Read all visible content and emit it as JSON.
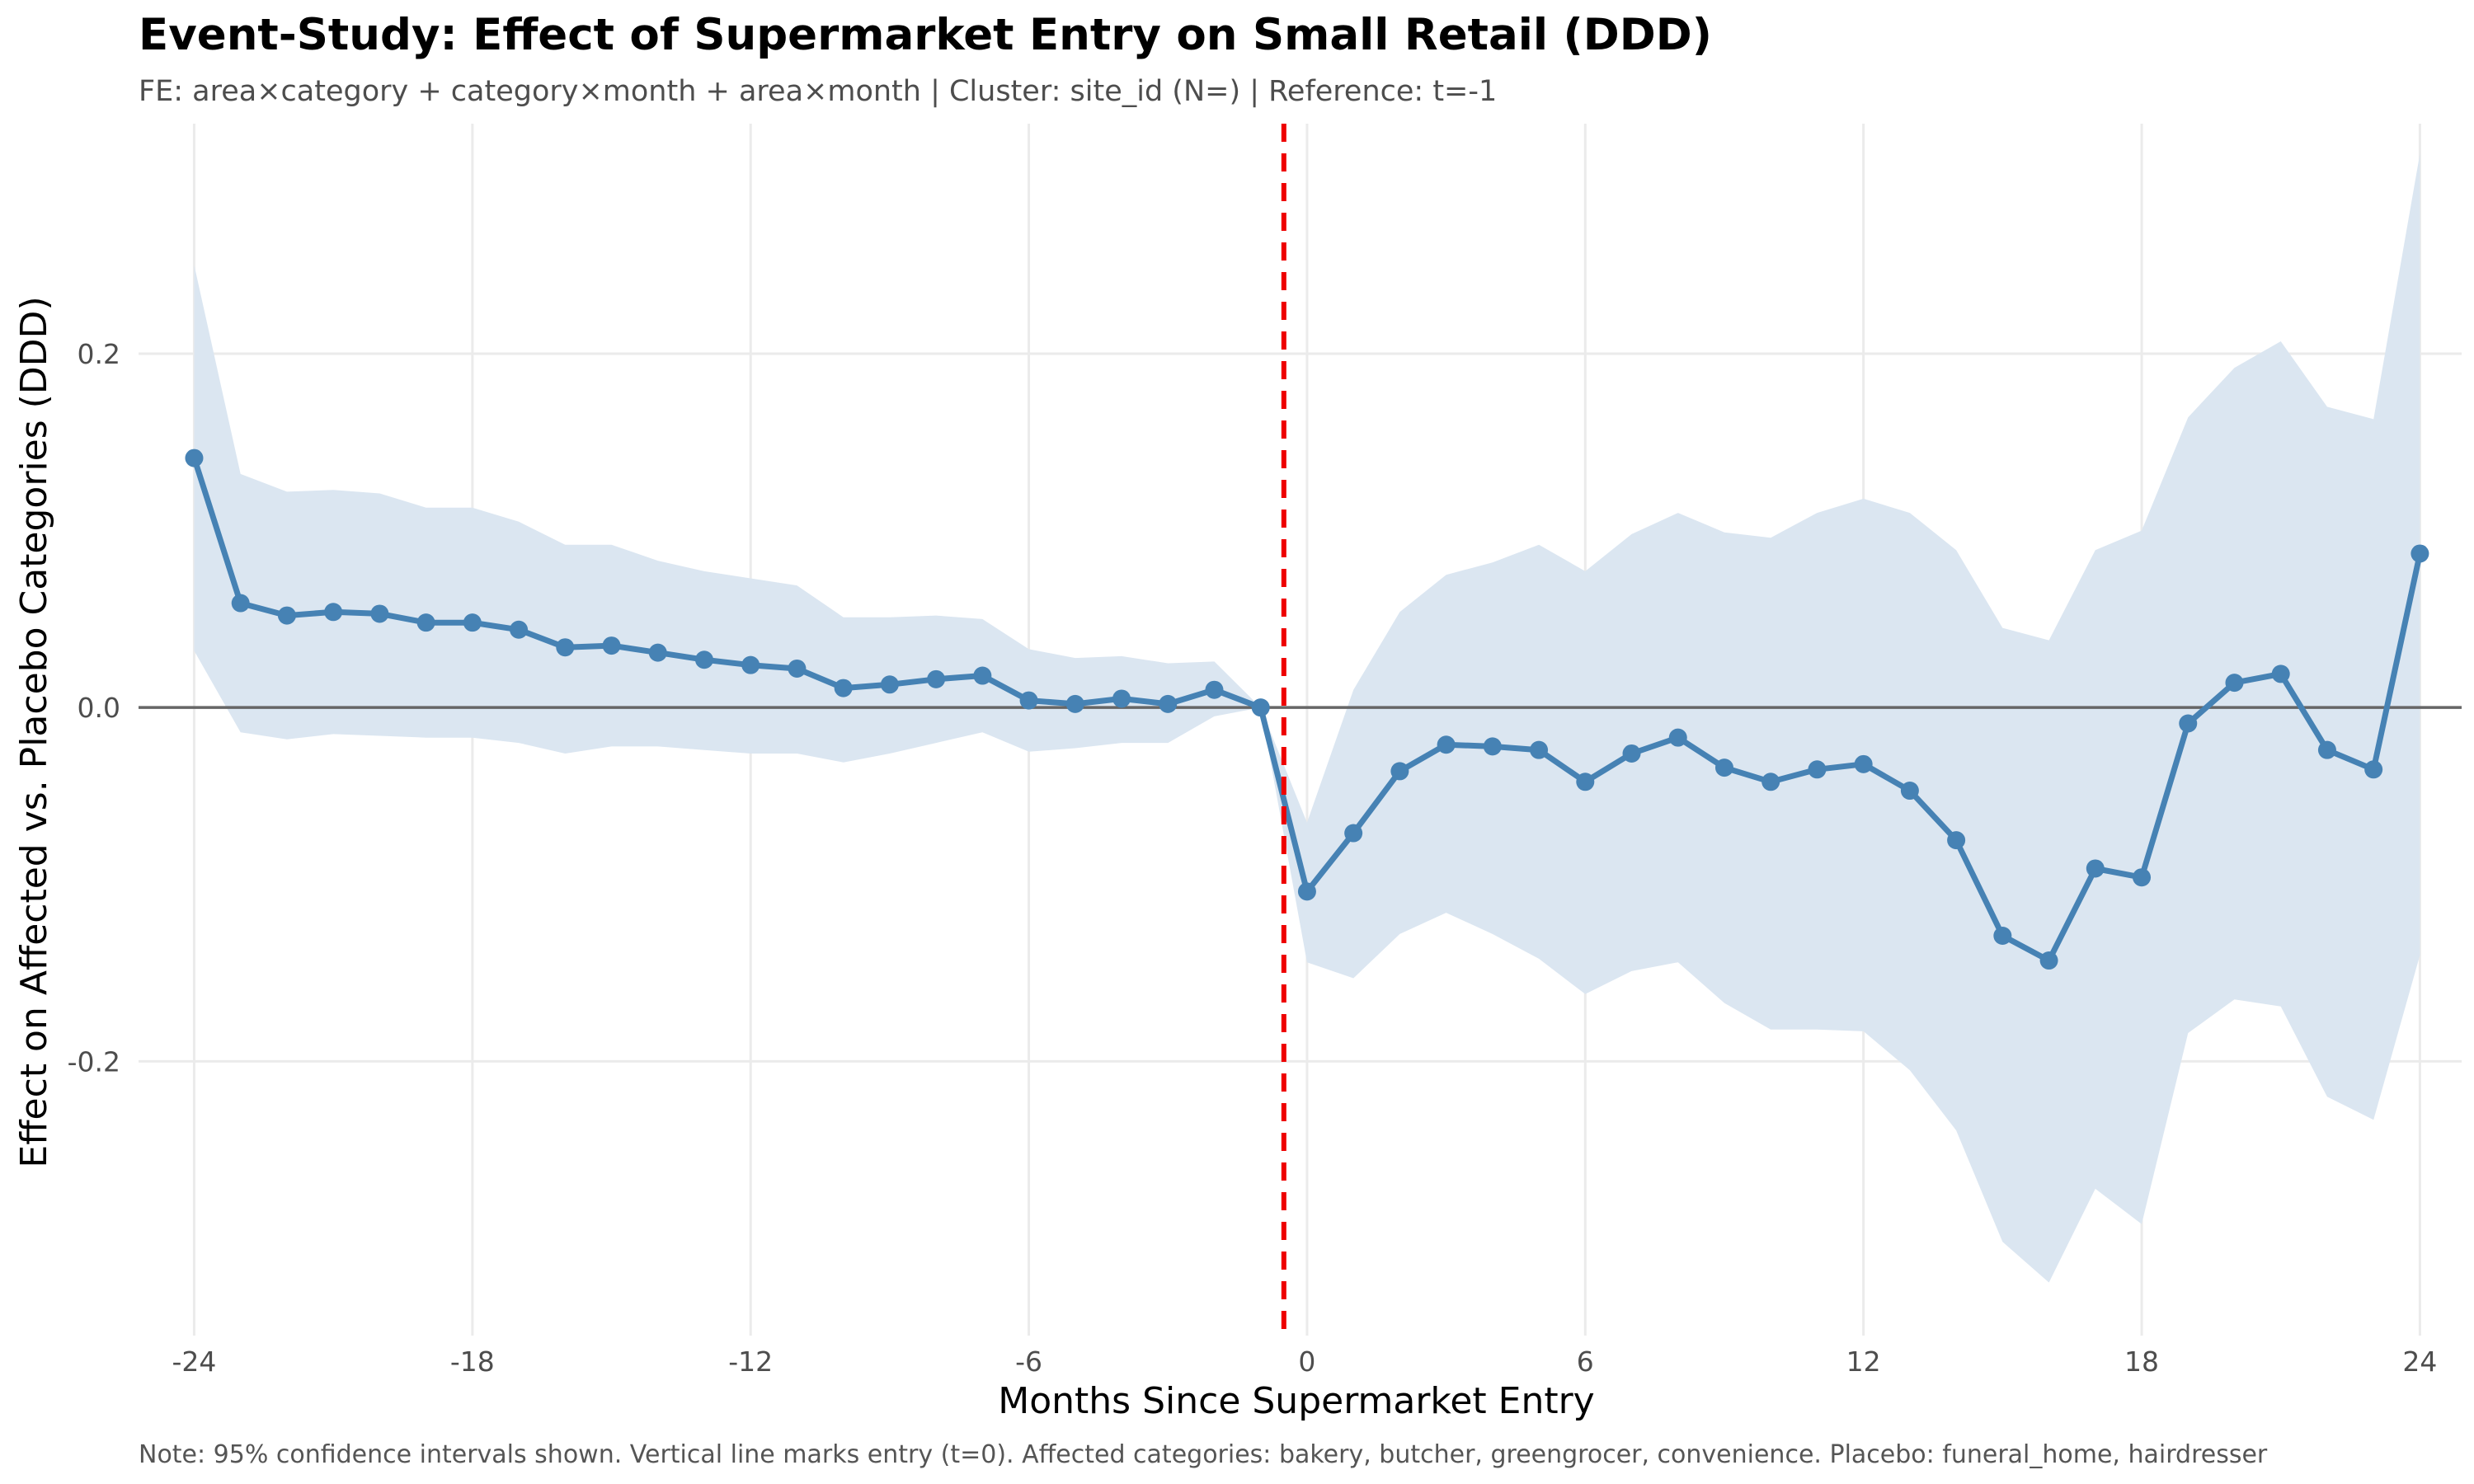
{
  "chart_data": {
    "type": "line",
    "title": "Event-Study: Effect of Supermarket Entry on Small Retail (DDD)",
    "subtitle": "FE: area×category + category×month + area×month | Cluster: site_id (N=) | Reference: t=-1",
    "xlabel": "Months Since Supermarket Entry",
    "ylabel": "Effect on Affected vs. Placebo Categories (DDD)",
    "caption": "Note: 95% confidence intervals shown. Vertical line marks entry (t=0). Affected categories: bakery, butcher, greengrocer, convenience. Placebo: funeral_home, hairdresser",
    "xlim": [
      -25.2,
      24.9
    ],
    "ylim": [
      -0.355,
      0.33
    ],
    "x_ticks": [
      -24,
      -18,
      -12,
      -6,
      0,
      6,
      12,
      18,
      24
    ],
    "x_tick_labels": [
      "-24",
      "-18",
      "-12",
      "-6",
      "0",
      "6",
      "12",
      "18",
      "24"
    ],
    "y_ticks": [
      -0.2,
      0.0,
      0.2
    ],
    "y_tick_labels": [
      "-0.2",
      "0.0",
      "0.2"
    ],
    "grid": true,
    "zero_line": 0,
    "entry_line_x": -0.5,
    "colors": {
      "line": "#4682b4",
      "ci_band": "#dbe6f1",
      "entry_line": "#ee0000",
      "zero_line": "#666666",
      "grid": "#ebebeb"
    },
    "x": [
      -24,
      -23,
      -22,
      -21,
      -20,
      -19,
      -18,
      -17,
      -16,
      -15,
      -14,
      -13,
      -12,
      -11,
      -10,
      -9,
      -8,
      -7,
      -6,
      -5,
      -4,
      -3,
      -2,
      -1,
      0,
      1,
      2,
      3,
      4,
      5,
      6,
      7,
      8,
      9,
      10,
      11,
      12,
      13,
      14,
      15,
      16,
      17,
      18,
      19,
      20,
      21,
      22,
      23,
      24
    ],
    "estimate": [
      0.141,
      0.059,
      0.052,
      0.054,
      0.053,
      0.048,
      0.048,
      0.044,
      0.034,
      0.035,
      0.031,
      0.027,
      0.024,
      0.022,
      0.011,
      0.013,
      0.016,
      0.018,
      0.004,
      0.002,
      0.005,
      0.002,
      0.01,
      0.0,
      -0.104,
      -0.071,
      -0.036,
      -0.021,
      -0.022,
      -0.024,
      -0.042,
      -0.026,
      -0.017,
      -0.034,
      -0.042,
      -0.035,
      -0.032,
      -0.047,
      -0.075,
      -0.129,
      -0.143,
      -0.091,
      -0.096,
      -0.009,
      0.014,
      0.019,
      -0.024,
      -0.035,
      0.087
    ],
    "ci_upper": [
      0.25,
      0.132,
      0.122,
      0.123,
      0.121,
      0.113,
      0.113,
      0.105,
      0.092,
      0.092,
      0.083,
      0.077,
      0.073,
      0.069,
      0.051,
      0.051,
      0.052,
      0.05,
      0.033,
      0.028,
      0.029,
      0.025,
      0.026,
      0.0,
      -0.065,
      0.01,
      0.054,
      0.075,
      0.082,
      0.092,
      0.077,
      0.098,
      0.11,
      0.099,
      0.096,
      0.11,
      0.118,
      0.11,
      0.089,
      0.045,
      0.038,
      0.089,
      0.1,
      0.164,
      0.192,
      0.207,
      0.17,
      0.163,
      0.313
    ],
    "ci_lower": [
      0.032,
      -0.014,
      -0.018,
      -0.015,
      -0.016,
      -0.017,
      -0.017,
      -0.02,
      -0.026,
      -0.022,
      -0.022,
      -0.024,
      -0.026,
      -0.026,
      -0.031,
      -0.026,
      -0.02,
      -0.014,
      -0.025,
      -0.023,
      -0.02,
      -0.02,
      -0.005,
      0.0,
      -0.144,
      -0.153,
      -0.128,
      -0.116,
      -0.128,
      -0.142,
      -0.162,
      -0.149,
      -0.144,
      -0.167,
      -0.182,
      -0.182,
      -0.183,
      -0.205,
      -0.239,
      -0.302,
      -0.325,
      -0.272,
      -0.292,
      -0.184,
      -0.165,
      -0.169,
      -0.22,
      -0.233,
      -0.14
    ],
    "series": [
      {
        "values_key": "estimate"
      }
    ]
  }
}
